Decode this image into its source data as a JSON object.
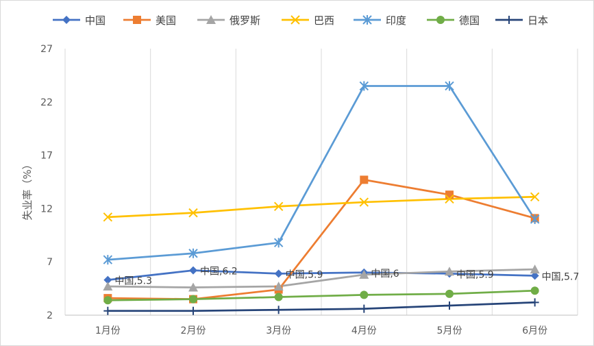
{
  "chart_data": {
    "type": "line",
    "categories": [
      "1月份",
      "2月份",
      "3月份",
      "4月份",
      "5月份",
      "6月份"
    ],
    "ylabel": "失业率（%）",
    "ylim": [
      2,
      27
    ],
    "yticks": [
      2,
      7,
      12,
      17,
      22,
      27
    ],
    "grid": "vertical gridlines",
    "legend_position": "top",
    "series": [
      {
        "name": "中国",
        "color": "#4472C4",
        "marker": "diamond",
        "values": [
          5.3,
          6.2,
          5.9,
          6.0,
          5.9,
          5.7
        ]
      },
      {
        "name": "美国",
        "color": "#ED7D31",
        "marker": "square",
        "values": [
          3.6,
          3.5,
          4.4,
          14.7,
          13.3,
          11.1
        ]
      },
      {
        "name": "俄罗斯",
        "color": "#A5A5A5",
        "marker": "triangle",
        "values": [
          4.7,
          4.6,
          4.7,
          5.8,
          6.1,
          6.3
        ]
      },
      {
        "name": "巴西",
        "color": "#FFC000",
        "marker": "x",
        "values": [
          11.2,
          11.6,
          12.2,
          12.6,
          12.9,
          13.1
        ]
      },
      {
        "name": "印度",
        "color": "#5B9BD5",
        "marker": "asterisk",
        "values": [
          7.2,
          7.8,
          8.8,
          23.5,
          23.5,
          11.0
        ]
      },
      {
        "name": "德国",
        "color": "#70AD47",
        "marker": "circle",
        "values": [
          3.4,
          3.5,
          3.7,
          3.9,
          4.0,
          4.3
        ]
      },
      {
        "name": "日本",
        "color": "#264478",
        "marker": "plus",
        "values": [
          2.4,
          2.4,
          2.5,
          2.6,
          2.9,
          3.2
        ]
      }
    ],
    "data_labels": {
      "series": "中国",
      "texts": [
        "中国,5.3",
        "中国,6.2",
        "中国,5.9",
        "中国,6",
        "中国,5.9",
        "中国,5.7"
      ]
    }
  }
}
